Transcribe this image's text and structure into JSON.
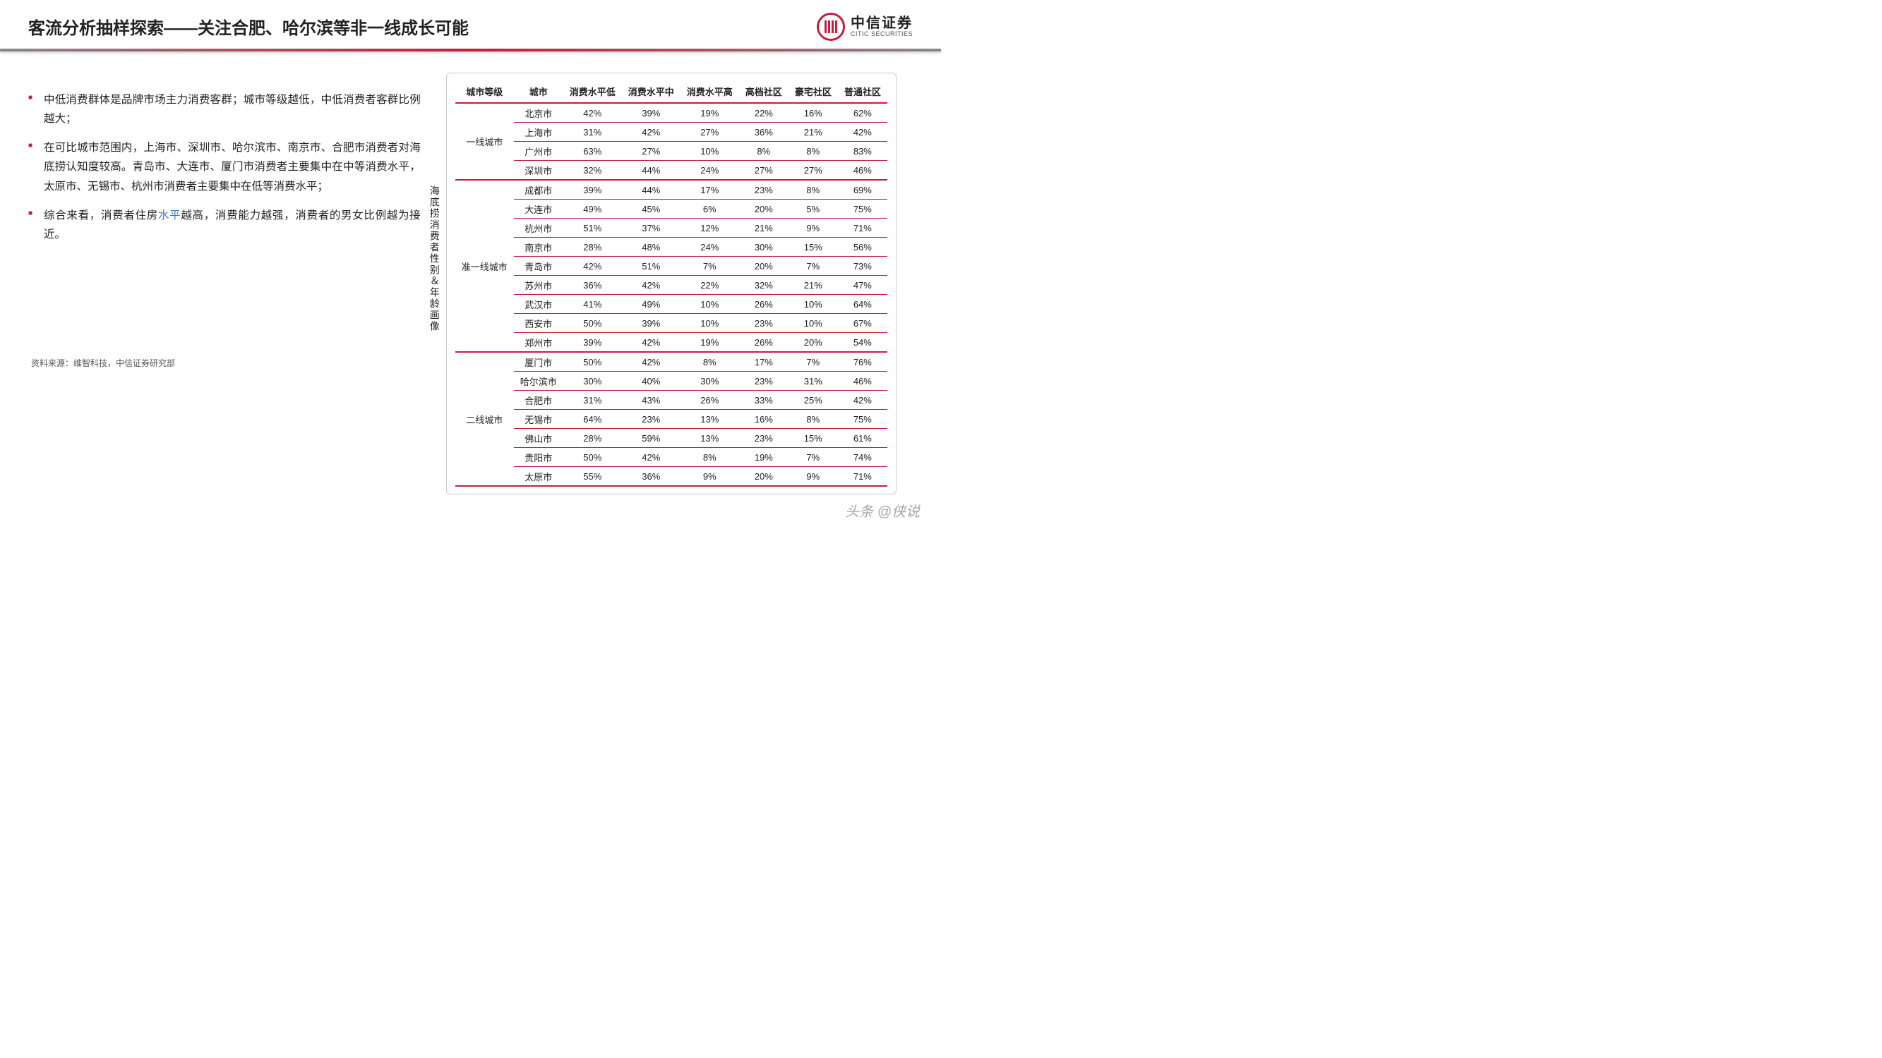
{
  "header": {
    "title": "客流分析抽样探索——关注合肥、哈尔滨等非一线成长可能",
    "logo_cn": "中信证券",
    "logo_en": "CITIC SECURITIES"
  },
  "bullets": [
    {
      "text": "中低消费群体是品牌市场主力消费客群；城市等级越低，中低消费者客群比例越大；"
    },
    {
      "text": "在可比城市范围内，上海市、深圳市、哈尔滨市、南京市、合肥市消费者对海底捞认知度较高。青岛市、大连市、厦门市消费者主要集中在中等消费水平，太原市、无锡市、杭州市消费者主要集中在低等消费水平；"
    },
    {
      "prefix": "综合来看，消费者住房",
      "highlight": "水平",
      "suffix": "越高，消费能力越强，消费者的男女比例越为接近。"
    }
  ],
  "source": "资料来源：维智科技，中信证券研究部",
  "table": {
    "side_label": "海底捞消费者性别＆年龄画像",
    "columns": [
      "城市等级",
      "城市",
      "消费水平低",
      "消费水平中",
      "消费水平高",
      "高档社区",
      "豪宅社区",
      "普通社区"
    ],
    "groups": [
      {
        "tier": "一线城市",
        "rows": [
          {
            "city": "北京市",
            "v": [
              "42%",
              "39%",
              "19%",
              "22%",
              "16%",
              "62%"
            ]
          },
          {
            "city": "上海市",
            "v": [
              "31%",
              "42%",
              "27%",
              "36%",
              "21%",
              "42%"
            ]
          },
          {
            "city": "广州市",
            "v": [
              "63%",
              "27%",
              "10%",
              "8%",
              "8%",
              "83%"
            ]
          },
          {
            "city": "深圳市",
            "v": [
              "32%",
              "44%",
              "24%",
              "27%",
              "27%",
              "46%"
            ]
          }
        ]
      },
      {
        "tier": "准一线城市",
        "rows": [
          {
            "city": "成都市",
            "v": [
              "39%",
              "44%",
              "17%",
              "23%",
              "8%",
              "69%"
            ]
          },
          {
            "city": "大连市",
            "v": [
              "49%",
              "45%",
              "6%",
              "20%",
              "5%",
              "75%"
            ]
          },
          {
            "city": "杭州市",
            "v": [
              "51%",
              "37%",
              "12%",
              "21%",
              "9%",
              "71%"
            ]
          },
          {
            "city": "南京市",
            "v": [
              "28%",
              "48%",
              "24%",
              "30%",
              "15%",
              "56%"
            ]
          },
          {
            "city": "青岛市",
            "v": [
              "42%",
              "51%",
              "7%",
              "20%",
              "7%",
              "73%"
            ]
          },
          {
            "city": "苏州市",
            "v": [
              "36%",
              "42%",
              "22%",
              "32%",
              "21%",
              "47%"
            ]
          },
          {
            "city": "武汉市",
            "v": [
              "41%",
              "49%",
              "10%",
              "26%",
              "10%",
              "64%"
            ]
          },
          {
            "city": "西安市",
            "v": [
              "50%",
              "39%",
              "10%",
              "23%",
              "10%",
              "67%"
            ]
          },
          {
            "city": "郑州市",
            "v": [
              "39%",
              "42%",
              "19%",
              "26%",
              "20%",
              "54%"
            ]
          }
        ]
      },
      {
        "tier": "二线城市",
        "rows": [
          {
            "city": "厦门市",
            "v": [
              "50%",
              "42%",
              "8%",
              "17%",
              "7%",
              "76%"
            ]
          },
          {
            "city": "哈尔滨市",
            "v": [
              "30%",
              "40%",
              "30%",
              "23%",
              "31%",
              "46%"
            ]
          },
          {
            "city": "合肥市",
            "v": [
              "31%",
              "43%",
              "26%",
              "33%",
              "25%",
              "42%"
            ]
          },
          {
            "city": "无锡市",
            "v": [
              "64%",
              "23%",
              "13%",
              "16%",
              "8%",
              "75%"
            ]
          },
          {
            "city": "佛山市",
            "v": [
              "28%",
              "59%",
              "13%",
              "23%",
              "15%",
              "61%"
            ]
          },
          {
            "city": "贵阳市",
            "v": [
              "50%",
              "42%",
              "8%",
              "19%",
              "7%",
              "74%"
            ]
          },
          {
            "city": "太原市",
            "v": [
              "55%",
              "36%",
              "9%",
              "20%",
              "9%",
              "71%"
            ]
          }
        ]
      }
    ]
  },
  "watermark": "头条 @侠说",
  "colors": {
    "accent": "#c41e3a",
    "text": "#222",
    "link": "#3a7bc8",
    "border": "#ccc"
  }
}
